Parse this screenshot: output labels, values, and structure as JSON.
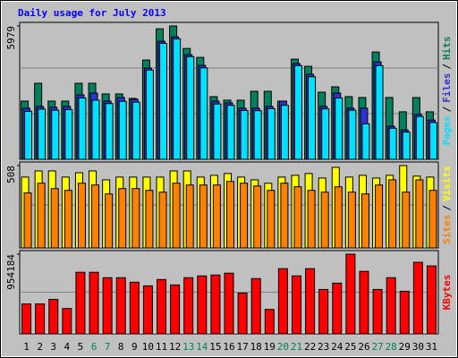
{
  "title": "Daily usage for July 2013",
  "legend_separator": "/",
  "chart_data": [
    {
      "type": "bar",
      "ylim": [
        0,
        5979
      ],
      "yticks": [
        5979
      ],
      "series": [
        {
          "name": "Hits",
          "color": "#00805c",
          "values": [
            2610,
            3410,
            2610,
            2610,
            3410,
            3410,
            2930,
            2930,
            2730,
            4450,
            5850,
            5979,
            4970,
            4570,
            2810,
            2650,
            2650,
            3050,
            3050,
            2610,
            4490,
            4170,
            3010,
            3250,
            2810,
            2770,
            4810,
            2770,
            2130,
            2770,
            2130
          ]
        },
        {
          "name": "Files",
          "color": "#3030d8",
          "values": [
            2290,
            2370,
            2330,
            2370,
            2890,
            2970,
            2610,
            2770,
            2690,
            4090,
            5290,
            5490,
            4690,
            4210,
            2610,
            2530,
            2290,
            2290,
            2370,
            2610,
            4290,
            3810,
            2370,
            2970,
            2290,
            2290,
            4370,
            1480,
            1320,
            2010,
            1760
          ]
        },
        {
          "name": "Pages",
          "color": "#00e0ff",
          "values": [
            2150,
            2250,
            2200,
            2230,
            2750,
            2650,
            2500,
            2600,
            2560,
            4000,
            5200,
            5400,
            4600,
            4100,
            2480,
            2420,
            2190,
            2180,
            2270,
            2420,
            4200,
            3700,
            2260,
            2750,
            2200,
            1590,
            4200,
            1390,
            1220,
            1920,
            1650
          ]
        }
      ]
    },
    {
      "type": "bar",
      "ylim": [
        0,
        508
      ],
      "yticks": [
        508
      ],
      "series": [
        {
          "name": "Visits",
          "color": "#ffff00",
          "values": [
            437,
            475,
            475,
            437,
            464,
            475,
            420,
            437,
            437,
            437,
            437,
            475,
            475,
            437,
            448,
            459,
            437,
            420,
            399,
            437,
            448,
            459,
            431,
            497,
            437,
            448,
            431,
            448,
            508,
            443,
            437
          ]
        },
        {
          "name": "Sites",
          "color": "#ff8000",
          "values": [
            339,
            399,
            366,
            355,
            399,
            388,
            333,
            366,
            366,
            355,
            344,
            399,
            388,
            388,
            388,
            410,
            399,
            382,
            355,
            399,
            377,
            355,
            344,
            377,
            344,
            333,
            388,
            420,
            344,
            420,
            355
          ]
        }
      ]
    },
    {
      "type": "bar",
      "ylim": [
        0,
        954184
      ],
      "yticks": [
        954184
      ],
      "categories": [
        "1",
        "2",
        "3",
        "4",
        "5",
        "6",
        "7",
        "8",
        "9",
        "10",
        "11",
        "12",
        "13",
        "14",
        "15",
        "16",
        "17",
        "18",
        "19",
        "20",
        "21",
        "22",
        "23",
        "24",
        "25",
        "26",
        "27",
        "28",
        "29",
        "30",
        "31"
      ],
      "category_colors": [
        "#000000",
        "#000000",
        "#000000",
        "#000000",
        "#000000",
        "#00805c",
        "#00805c",
        "#000000",
        "#000000",
        "#000000",
        "#000000",
        "#000000",
        "#00805c",
        "#00805c",
        "#000000",
        "#000000",
        "#000000",
        "#000000",
        "#000000",
        "#00805c",
        "#00805c",
        "#000000",
        "#000000",
        "#000000",
        "#000000",
        "#000000",
        "#00805c",
        "#00805c",
        "#000000",
        "#000000",
        "#000000"
      ],
      "series": [
        {
          "name": "KBytes",
          "color": "#ff0000",
          "values": [
            357865,
            357865,
            412081,
            303649,
            737346,
            737346,
            672288,
            672288,
            618072,
            574701,
            650602,
            585544,
            672288,
            693973,
            704816,
            726502,
            488131,
            661445,
            292806,
            780717,
            693973,
            780717,
            531502,
            607230,
            954184,
            748187,
            531502,
            672288,
            509817,
            856610,
            813239
          ]
        }
      ]
    }
  ]
}
